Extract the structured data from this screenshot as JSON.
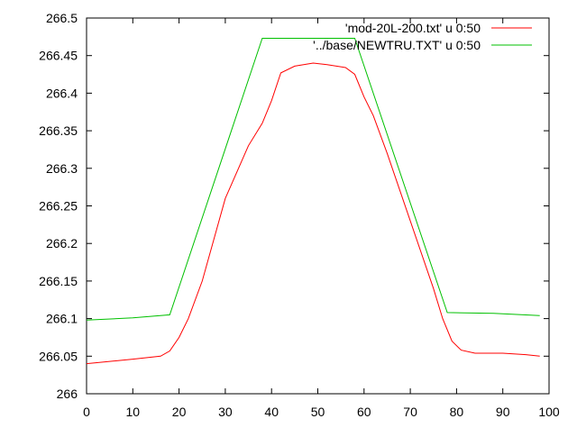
{
  "chart_data": {
    "type": "line",
    "title": "",
    "xlabel": "",
    "ylabel": "",
    "xlim": [
      0,
      100
    ],
    "ylim": [
      266,
      266.5
    ],
    "xticks": [
      "0",
      "10",
      "20",
      "30",
      "40",
      "50",
      "60",
      "70",
      "80",
      "90",
      "100"
    ],
    "yticks": [
      "266",
      "266.05",
      "266.1",
      "266.15",
      "266.2",
      "266.25",
      "266.3",
      "266.35",
      "266.4",
      "266.45",
      "266.5"
    ],
    "grid": false,
    "legend_position": "top-right",
    "series": [
      {
        "name": "'mod-20L-200.txt' u 0:50",
        "color": "#ff0000",
        "x": [
          0,
          10,
          16,
          18,
          20,
          22,
          25,
          30,
          35,
          38,
          40,
          42,
          45,
          49,
          52,
          56,
          58,
          60,
          62,
          65,
          70,
          75,
          77,
          79,
          81,
          84,
          90,
          95,
          98
        ],
        "y": [
          266.04,
          266.046,
          266.05,
          266.057,
          266.075,
          266.1,
          266.15,
          266.26,
          266.33,
          266.36,
          266.39,
          266.427,
          266.436,
          266.44,
          266.438,
          266.434,
          266.425,
          266.395,
          266.37,
          266.32,
          266.23,
          266.14,
          266.1,
          266.07,
          266.058,
          266.054,
          266.054,
          266.052,
          266.05
        ]
      },
      {
        "name": "'../base/NEWTRU.TXT' u 0:50",
        "color": "#00c000",
        "x": [
          0,
          10,
          18,
          38,
          58,
          78,
          88,
          98
        ],
        "y": [
          266.098,
          266.101,
          266.105,
          266.473,
          266.473,
          266.108,
          266.107,
          266.104
        ]
      }
    ]
  }
}
